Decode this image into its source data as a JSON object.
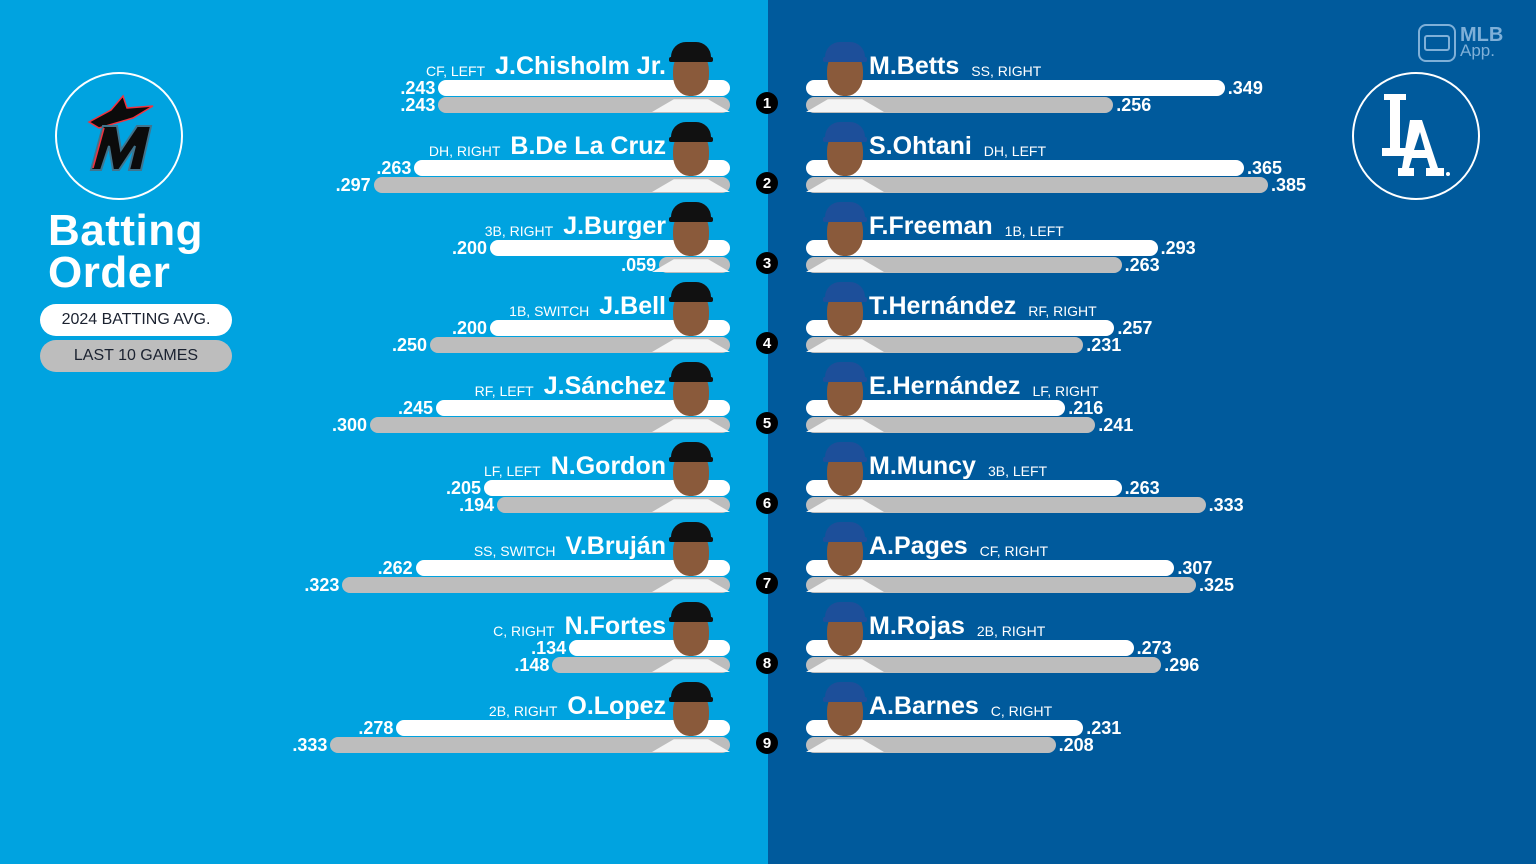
{
  "header": {
    "title_line1": "Batting",
    "title_line2": "Order",
    "legend": {
      "season_label": "2024 BATTING AVG.",
      "last10_label": "LAST 10 GAMES"
    },
    "app_badge": {
      "line1": "MLB",
      "line2": "App."
    }
  },
  "teams": {
    "away": {
      "logo": "marlins-m-logo",
      "color": "#00A3E0"
    },
    "home": {
      "logo": "dodgers-la-logo",
      "color": "#005A9C"
    }
  },
  "colors": {
    "season_bar": "#FFFFFF",
    "last10_bar": "#BDBDBD",
    "badge": "#000000"
  },
  "chart_data": {
    "type": "bar",
    "title": "Batting Order",
    "legend": [
      "2024 BATTING AVG.",
      "LAST 10 GAMES"
    ],
    "orientation": "horizontal-diverging",
    "categories": [
      "1",
      "2",
      "3",
      "4",
      "5",
      "6",
      "7",
      "8",
      "9"
    ],
    "series": [
      {
        "name": "Marlins 2024 Batting Avg.",
        "values": [
          0.243,
          0.263,
          0.2,
          0.2,
          0.245,
          0.205,
          0.262,
          0.134,
          0.278
        ]
      },
      {
        "name": "Marlins Last 10 Games",
        "values": [
          0.243,
          0.297,
          0.059,
          0.25,
          0.3,
          0.194,
          0.323,
          0.148,
          0.333
        ]
      },
      {
        "name": "Dodgers 2024 Batting Avg.",
        "values": [
          0.349,
          0.365,
          0.293,
          0.257,
          0.216,
          0.263,
          0.307,
          0.273,
          0.231
        ]
      },
      {
        "name": "Dodgers Last 10 Games",
        "values": [
          0.256,
          0.385,
          0.263,
          0.231,
          0.241,
          0.333,
          0.325,
          0.296,
          0.208
        ]
      }
    ],
    "grid": false
  },
  "away_lineup": [
    {
      "order": "1",
      "name": "J.Chisholm Jr.",
      "pos": "CF, LEFT",
      "avg": ".243",
      "last10": ".243",
      "avg_v": 0.243,
      "last10_v": 0.243
    },
    {
      "order": "2",
      "name": "B.De La Cruz",
      "pos": "DH, RIGHT",
      "avg": ".263",
      "last10": ".297",
      "avg_v": 0.263,
      "last10_v": 0.297
    },
    {
      "order": "3",
      "name": "J.Burger",
      "pos": "3B, RIGHT",
      "avg": ".200",
      "last10": ".059",
      "avg_v": 0.2,
      "last10_v": 0.059
    },
    {
      "order": "4",
      "name": "J.Bell",
      "pos": "1B, SWITCH",
      "avg": ".200",
      "last10": ".250",
      "avg_v": 0.2,
      "last10_v": 0.25
    },
    {
      "order": "5",
      "name": "J.Sánchez",
      "pos": "RF, LEFT",
      "avg": ".245",
      "last10": ".300",
      "avg_v": 0.245,
      "last10_v": 0.3
    },
    {
      "order": "6",
      "name": "N.Gordon",
      "pos": "LF, LEFT",
      "avg": ".205",
      "last10": ".194",
      "avg_v": 0.205,
      "last10_v": 0.194
    },
    {
      "order": "7",
      "name": "V.Bruján",
      "pos": "SS, SWITCH",
      "avg": ".262",
      "last10": ".323",
      "avg_v": 0.262,
      "last10_v": 0.323
    },
    {
      "order": "8",
      "name": "N.Fortes",
      "pos": "C, RIGHT",
      "avg": ".134",
      "last10": ".148",
      "avg_v": 0.134,
      "last10_v": 0.148
    },
    {
      "order": "9",
      "name": "O.Lopez",
      "pos": "2B, RIGHT",
      "avg": ".278",
      "last10": ".333",
      "avg_v": 0.278,
      "last10_v": 0.333
    }
  ],
  "home_lineup": [
    {
      "order": "1",
      "name": "M.Betts",
      "pos": "SS, RIGHT",
      "avg": ".349",
      "last10": ".256",
      "avg_v": 0.349,
      "last10_v": 0.256
    },
    {
      "order": "2",
      "name": "S.Ohtani",
      "pos": "DH, LEFT",
      "avg": ".365",
      "last10": ".385",
      "avg_v": 0.365,
      "last10_v": 0.385
    },
    {
      "order": "3",
      "name": "F.Freeman",
      "pos": "1B, LEFT",
      "avg": ".293",
      "last10": ".263",
      "avg_v": 0.293,
      "last10_v": 0.263
    },
    {
      "order": "4",
      "name": "T.Hernández",
      "pos": "RF, RIGHT",
      "avg": ".257",
      "last10": ".231",
      "avg_v": 0.257,
      "last10_v": 0.231
    },
    {
      "order": "5",
      "name": "E.Hernández",
      "pos": "LF, RIGHT",
      "avg": ".216",
      "last10": ".241",
      "avg_v": 0.216,
      "last10_v": 0.241
    },
    {
      "order": "6",
      "name": "M.Muncy",
      "pos": "3B, LEFT",
      "avg": ".263",
      "last10": ".333",
      "avg_v": 0.263,
      "last10_v": 0.333
    },
    {
      "order": "7",
      "name": "A.Pages",
      "pos": "CF, RIGHT",
      "avg": ".307",
      "last10": ".325",
      "avg_v": 0.307,
      "last10_v": 0.325
    },
    {
      "order": "8",
      "name": "M.Rojas",
      "pos": "2B, RIGHT",
      "avg": ".273",
      "last10": ".296",
      "avg_v": 0.273,
      "last10_v": 0.296
    },
    {
      "order": "9",
      "name": "A.Barnes",
      "pos": "C, RIGHT",
      "avg": ".231",
      "last10": ".208",
      "avg_v": 0.231,
      "last10_v": 0.208
    }
  ]
}
